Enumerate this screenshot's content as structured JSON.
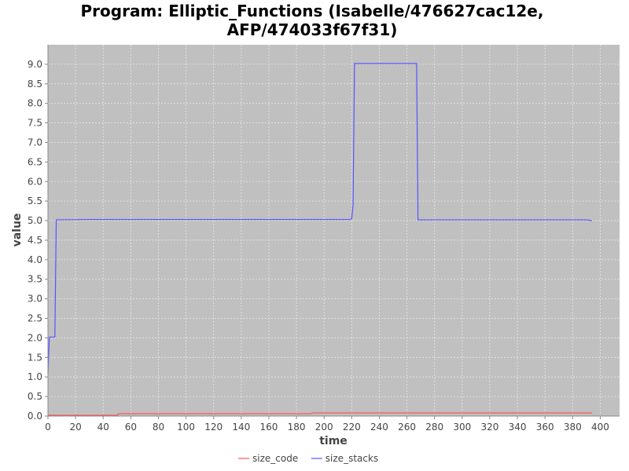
{
  "chart_data": {
    "type": "line",
    "title_lines": [
      "Program: Elliptic_Functions (Isabelle/476627cac12e,",
      "AFP/474033f67f31)"
    ],
    "xlabel": "time",
    "ylabel": "value",
    "xlim": [
      0,
      414
    ],
    "ylim": [
      0,
      9.5
    ],
    "xticks": [
      0,
      20,
      40,
      60,
      80,
      100,
      120,
      140,
      160,
      180,
      200,
      220,
      240,
      260,
      280,
      300,
      320,
      340,
      360,
      380,
      400
    ],
    "yticks": [
      0.0,
      0.5,
      1.0,
      1.5,
      2.0,
      2.5,
      3.0,
      3.5,
      4.0,
      4.5,
      5.0,
      5.5,
      6.0,
      6.5,
      7.0,
      7.5,
      8.0,
      8.5,
      9.0
    ],
    "grid": true,
    "legend_position": "bottom-center",
    "colors": {
      "plot_background": "#c0c0c0",
      "grid": "#e8e8e8"
    },
    "series": [
      {
        "name": "size_code",
        "color": "#ff5555",
        "x": [
          0,
          10,
          50,
          51,
          100,
          190,
          192,
          250,
          300,
          394
        ],
        "y": [
          0.02,
          0.02,
          0.02,
          0.06,
          0.06,
          0.06,
          0.08,
          0.08,
          0.08,
          0.08
        ]
      },
      {
        "name": "size_stacks",
        "color": "#5555ff",
        "x": [
          0,
          1,
          5,
          6,
          30,
          100,
          200,
          219,
          220,
          221,
          222,
          250,
          267,
          268,
          280,
          390,
          394
        ],
        "y": [
          1.1,
          2.02,
          2.02,
          5.02,
          5.03,
          5.03,
          5.03,
          5.03,
          5.05,
          5.4,
          9.02,
          9.02,
          9.02,
          5.02,
          5.02,
          5.02,
          5.0
        ]
      }
    ]
  }
}
